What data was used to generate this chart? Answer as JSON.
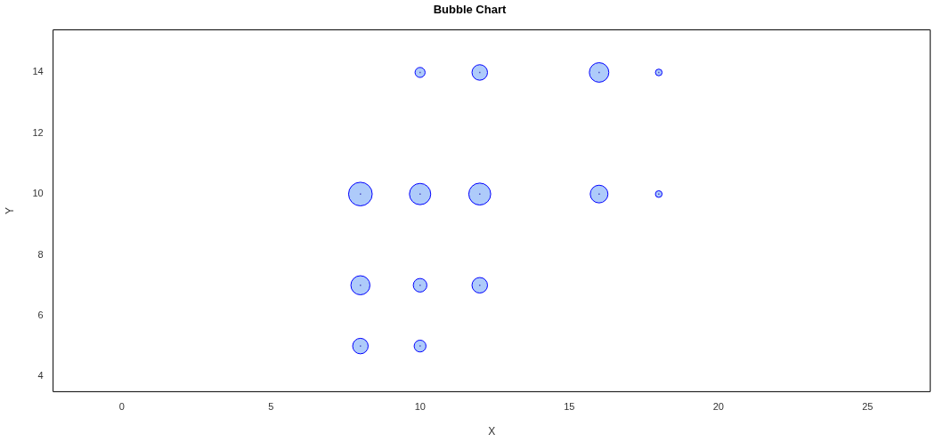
{
  "chart_data": {
    "type": "bubble",
    "title": "Bubble Chart",
    "xlabel": "X",
    "ylabel": "Y",
    "x": [
      8,
      10,
      12,
      16,
      18,
      10,
      12,
      16,
      18,
      8,
      10,
      12,
      8,
      10
    ],
    "values": [
      10,
      10,
      10,
      10,
      10,
      14,
      14,
      14,
      14,
      7,
      7,
      7,
      5,
      5
    ],
    "sizes": [
      1,
      0.81,
      0.86,
      0.56,
      0.08,
      0.18,
      0.43,
      0.68,
      0.08,
      0.65,
      0.33,
      0.43,
      0.43,
      0.25
    ],
    "color": "#aecbfa",
    "xlim": [
      -2.3,
      27.1
    ],
    "xticks": [
      0,
      5,
      10,
      15,
      20,
      25
    ],
    "ylim": [
      3.5,
      15.4
    ],
    "yticks": [
      4,
      6,
      8,
      10,
      12,
      14
    ],
    "grid": false,
    "legend": false
  }
}
